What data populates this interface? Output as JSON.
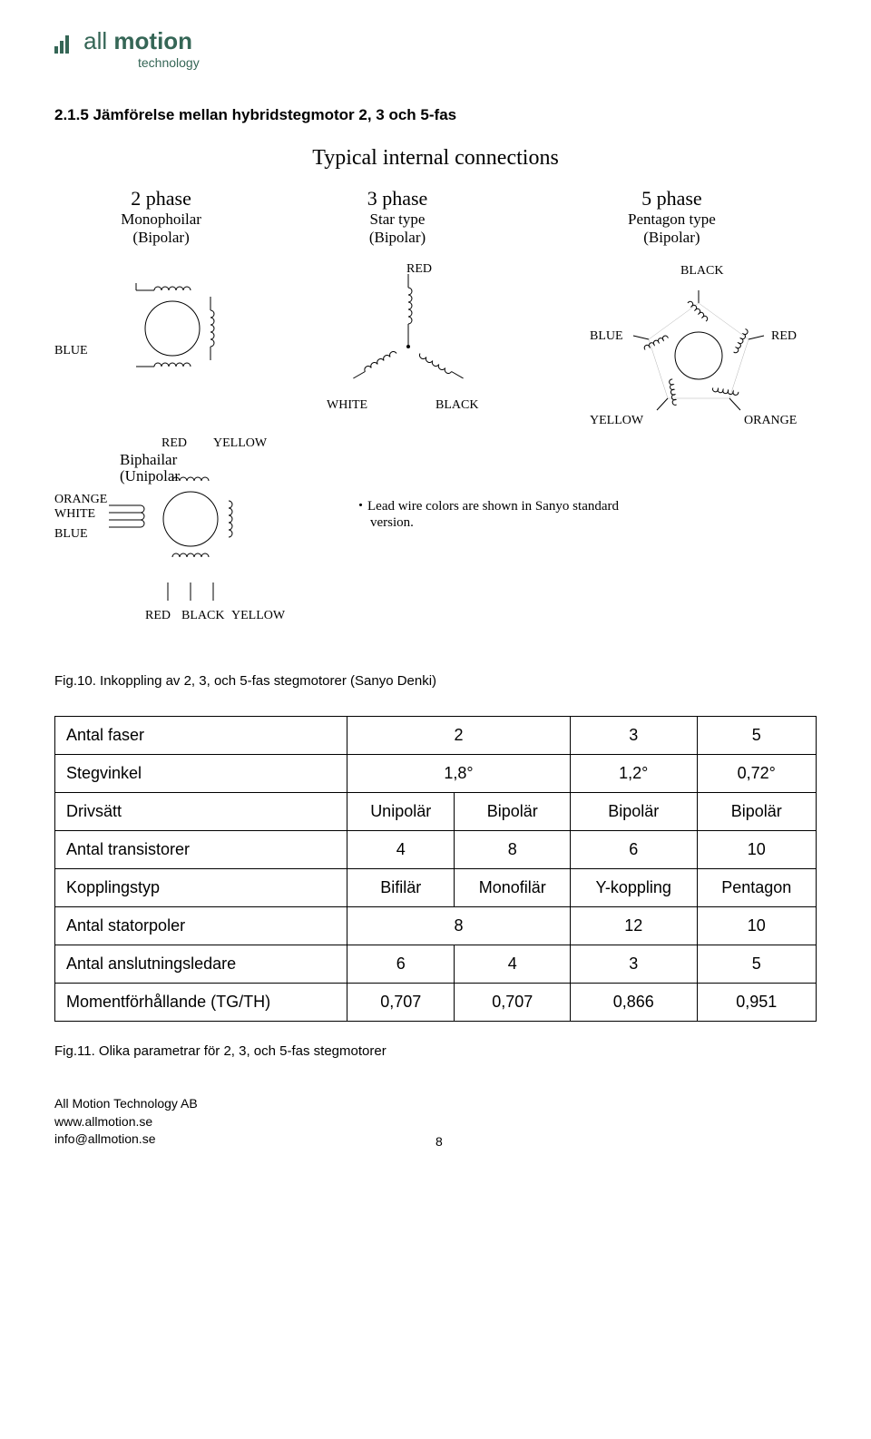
{
  "logo": {
    "main": "all motion",
    "sub": "technology",
    "bar_color": "#356656"
  },
  "section_heading": "2.1.5 Jämförelse mellan hybridstegmotor 2, 3 och 5-fas",
  "fig_title": "Typical internal connections",
  "columns": {
    "c1": {
      "head": "2 phase",
      "sub1": "Monophoilar",
      "sub2": "(Bipolar)"
    },
    "c2": {
      "head": "3 phase",
      "sub1": "Star type",
      "sub2": "(Bipolar)"
    },
    "c3": {
      "head": "5 phase",
      "sub1": "Pentagon type",
      "sub2": "(Bipolar)"
    }
  },
  "labels": {
    "blue": "BLUE",
    "red": "RED",
    "yellow": "YELLOW",
    "white": "WHITE",
    "black": "BLACK",
    "orange": "ORANGE",
    "biphailar": "Biphailar",
    "unipolar": "(Unipolar",
    "note1": "・Lead wire colors are shown in Sanyo standard",
    "note2": "version."
  },
  "fig10_caption": "Fig.10. Inkoppling av 2, 3, och 5-fas stegmotorer (Sanyo Denki)",
  "table": {
    "rows": [
      {
        "label": "Antal faser",
        "cells": [
          "2",
          "3",
          "5"
        ],
        "span_first_two": true
      },
      {
        "label": "Stegvinkel",
        "cells": [
          "1,8°",
          "1,2°",
          "0,72°"
        ],
        "span_first_two": true
      },
      {
        "label": "Drivsätt",
        "cells": [
          "Unipolär",
          "Bipolär",
          "Bipolär",
          "Bipolär"
        ]
      },
      {
        "label": "Antal transistorer",
        "cells": [
          "4",
          "8",
          "6",
          "10"
        ]
      },
      {
        "label": "Kopplingstyp",
        "cells": [
          "Bifilär",
          "Monofilär",
          "Y-koppling",
          "Pentagon"
        ]
      },
      {
        "label": "Antal statorpoler",
        "cells": [
          "8",
          "12",
          "10"
        ],
        "span_first_two": true
      },
      {
        "label": "Antal anslutningsledare",
        "cells": [
          "6",
          "4",
          "3",
          "5"
        ]
      },
      {
        "label": "Momentförhållande (TG/TH)",
        "cells": [
          "0,707",
          "0,707",
          "0,866",
          "0,951"
        ]
      }
    ]
  },
  "fig11_caption": "Fig.11. Olika parametrar för 2, 3, och 5-fas stegmotorer",
  "footer": {
    "l1": "All Motion Technology AB",
    "l2": "www.allmotion.se",
    "l3": "info@allmotion.se",
    "page": "8"
  },
  "style": {
    "stroke": "#000000",
    "stroke_width": 1,
    "font_serif": "Times New Roman",
    "table_border": "#000000"
  }
}
